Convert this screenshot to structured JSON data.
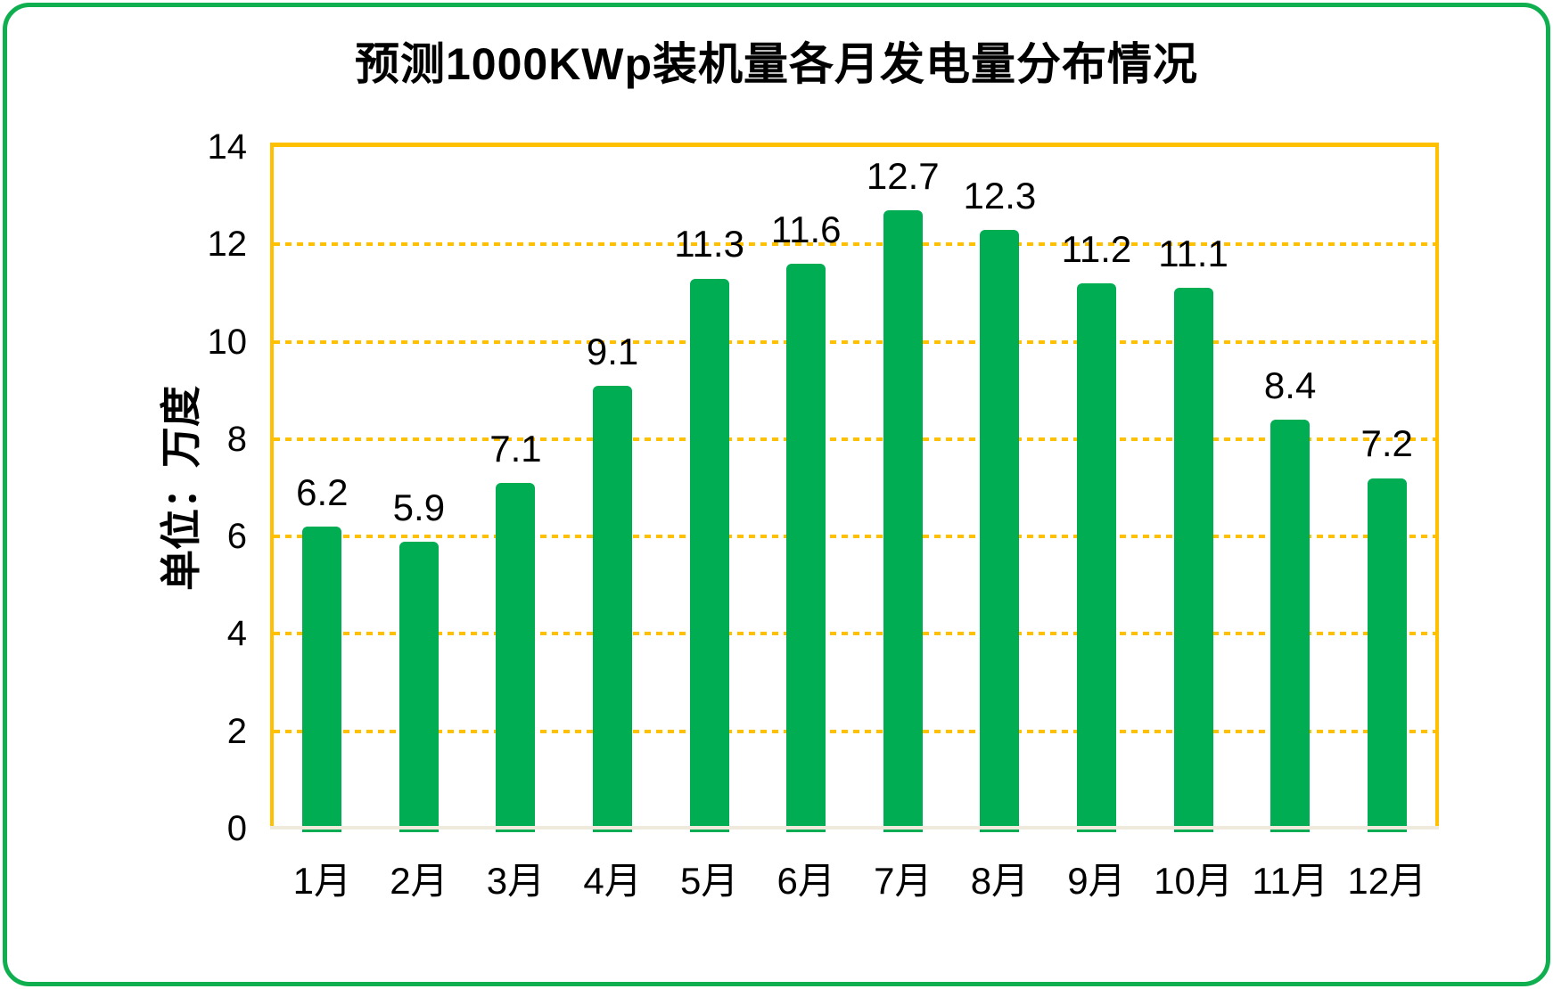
{
  "title": "预测1000KWp装机量各月发电量分布情况",
  "chart_data": {
    "type": "bar",
    "title": "预测1000KWp装机量各月发电量分布情况",
    "ylabel": "单位：万度",
    "xlabel": "",
    "categories": [
      "1月",
      "2月",
      "3月",
      "4月",
      "5月",
      "6月",
      "7月",
      "8月",
      "9月",
      "10月",
      "11月",
      "12月"
    ],
    "values": [
      6.2,
      5.9,
      7.1,
      9.1,
      11.3,
      11.6,
      12.7,
      12.3,
      11.2,
      11.1,
      8.4,
      7.2
    ],
    "data_labels": [
      "6.2",
      "5.9",
      "7.1",
      "9.1",
      "11.3",
      "11.6",
      "12.7",
      "12.3",
      "11.2",
      "11.1",
      "8.4",
      "7.2"
    ],
    "ylim": [
      0,
      14
    ],
    "yticks": [
      0,
      2,
      4,
      6,
      8,
      10,
      12,
      14
    ],
    "grid": "horizontal-dotted",
    "legend": "none",
    "colors": {
      "bar": "#00AD52",
      "outer_frame": "#0FAF4F",
      "axis": "#FFC000",
      "gridline": "#FFC000",
      "baseline": "#EFEADB",
      "text": "#000000",
      "background": "#FFFFFF"
    }
  }
}
